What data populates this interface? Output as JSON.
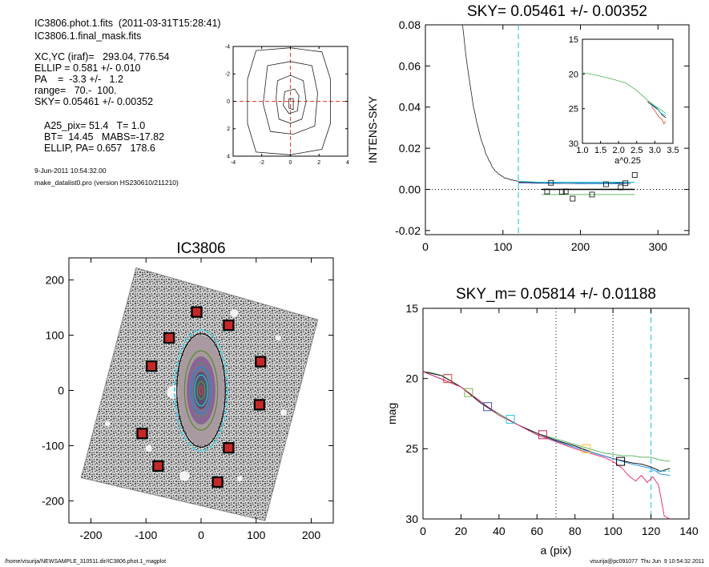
{
  "info": {
    "lines": [
      "IC3806.phot.1.fits  (2011-03-31T15:28:41)",
      "IC3806.1.final_mask.fits",
      "XC,YC (iraf)=   293.04, 776.54",
      "ELLIP = 0.581 +/- 0.010",
      "PA    =  -3.3 +/-   1.2",
      "range=   70.-  100.",
      "SKY= 0.05461 +/- 0.00352",
      "A25_pix= 51.4   T= 1.0",
      "BT=  14.45   MABS=-17.82",
      "ELLIP, PA= 0.657   178.6",
      "9-Jun-2011 10:54:32.00",
      "make_datalist0.pro (version HS230610/211210)"
    ]
  },
  "footer": {
    "left": "/home/visurija/NEWSAMPLE_310511.dir/IC3806.phot.1_magplot",
    "right": "visurija@pc091077  Thu Jun  9 10:54:32 2011"
  },
  "chart_data": [
    {
      "id": "contour",
      "type": "line",
      "title": "",
      "xlabel": "",
      "ylabel": "",
      "xlim": [
        -4,
        4
      ],
      "ylim": [
        -4,
        4
      ],
      "xticks": [
        "-4",
        "-2",
        "0",
        "2",
        "4"
      ],
      "yticks": [
        "-4",
        "-2",
        "0",
        "2",
        "4"
      ],
      "contours": [
        [
          [
            -2.4,
            3.7
          ],
          [
            0,
            3.9
          ],
          [
            2.2,
            3.6
          ],
          [
            2.8,
            1.6
          ],
          [
            2.8,
            -1.6
          ],
          [
            2.2,
            -3.5
          ],
          [
            0,
            -3.9
          ],
          [
            -2.4,
            -3.7
          ],
          [
            -3.0,
            -1.6
          ],
          [
            -3.0,
            1.6
          ]
        ],
        [
          [
            -1.6,
            2.6
          ],
          [
            0,
            2.9
          ],
          [
            1.5,
            2.6
          ],
          [
            1.9,
            0.6
          ],
          [
            1.7,
            -1.8
          ],
          [
            0.2,
            -2.4
          ],
          [
            -1.4,
            -2.2
          ],
          [
            -1.9,
            -0.2
          ]
        ],
        [
          [
            -0.9,
            1.5
          ],
          [
            0,
            1.9
          ],
          [
            0.9,
            1.5
          ],
          [
            1.1,
            0
          ],
          [
            0.8,
            -1.3
          ],
          [
            0,
            -1.6
          ],
          [
            -0.8,
            -1.3
          ],
          [
            -1.0,
            0.2
          ]
        ],
        [
          [
            -0.4,
            0.7
          ],
          [
            0.3,
            0.9
          ],
          [
            0.6,
            0.4
          ],
          [
            0.5,
            -0.7
          ],
          [
            -0.1,
            -0.9
          ],
          [
            -0.5,
            -0.3
          ]
        ],
        [
          [
            -0.1,
            0.2
          ],
          [
            0.2,
            0.2
          ],
          [
            0.2,
            -0.6
          ],
          [
            -0.1,
            -0.5
          ]
        ]
      ]
    },
    {
      "id": "sky",
      "type": "line",
      "title": "SKY= 0.05461 +/- 0.00352",
      "xlabel": "",
      "ylabel": "INTENS-SKY",
      "xlim": [
        0,
        340
      ],
      "ylim": [
        -0.022,
        0.08
      ],
      "xticks": [
        "0",
        "100",
        "200",
        "300"
      ],
      "yticks": [
        "0.08",
        "0.06",
        "0.04",
        "0.02",
        "0.00",
        "-0.02"
      ],
      "profile": [
        [
          48,
          0.08
        ],
        [
          50,
          0.073
        ],
        [
          52,
          0.066
        ],
        [
          54,
          0.06
        ],
        [
          56,
          0.055
        ],
        [
          58,
          0.05
        ],
        [
          60,
          0.045
        ],
        [
          62,
          0.04
        ],
        [
          64,
          0.037
        ],
        [
          66,
          0.033
        ],
        [
          68,
          0.03
        ],
        [
          70,
          0.027
        ],
        [
          72,
          0.024
        ],
        [
          74,
          0.022
        ],
        [
          76,
          0.02
        ],
        [
          78,
          0.017
        ],
        [
          80,
          0.016
        ],
        [
          82,
          0.014
        ],
        [
          84,
          0.013
        ],
        [
          86,
          0.011
        ],
        [
          88,
          0.01
        ],
        [
          90,
          0.009
        ],
        [
          92,
          0.0085
        ],
        [
          94,
          0.0075
        ],
        [
          96,
          0.0072
        ],
        [
          98,
          0.0066
        ],
        [
          100,
          0.0062
        ],
        [
          102,
          0.0055
        ],
        [
          104,
          0.0056
        ],
        [
          106,
          0.005
        ],
        [
          108,
          0.0052
        ],
        [
          110,
          0.0045
        ],
        [
          112,
          0.0048
        ],
        [
          114,
          0.0042
        ],
        [
          116,
          0.0044
        ],
        [
          118,
          0.004
        ],
        [
          120,
          0.004
        ]
      ],
      "tail_lines": [
        {
          "color": "#000000",
          "points": [
            [
              120,
              0.0035
            ],
            [
              160,
              0.003
            ],
            [
              200,
              0.0028
            ],
            [
              240,
              0.003
            ],
            [
              265,
              0.0035
            ]
          ]
        },
        {
          "color": "#00bcd4",
          "points": [
            [
              120,
              0.004
            ],
            [
              160,
              0.0032
            ],
            [
              200,
              0.0028
            ],
            [
              240,
              0.0027
            ],
            [
              265,
              0.0029
            ]
          ]
        },
        {
          "color": "#3f51b5",
          "points": [
            [
              120,
              0.0032
            ],
            [
              160,
              0.0029
            ],
            [
              200,
              0.003
            ],
            [
              240,
              0.003
            ],
            [
              265,
              0.0028
            ]
          ]
        }
      ],
      "sky_segments": [
        {
          "color": "#000000",
          "points": [
            [
              150,
              0.0
            ],
            [
              270,
              0.0
            ]
          ]
        },
        {
          "color": "#4caf50",
          "points": [
            [
              150,
              -0.0025
            ],
            [
              270,
              -0.0025
            ]
          ]
        },
        {
          "color": "#00bcd4",
          "points": [
            [
              150,
              0.0035
            ],
            [
              270,
              0.0035
            ]
          ]
        }
      ],
      "squares": [
        [
          157,
          -0.001
        ],
        [
          162,
          0.0032
        ],
        [
          176,
          -0.0012
        ],
        [
          181,
          -0.001
        ],
        [
          190,
          -0.0045
        ],
        [
          215,
          -0.0025
        ],
        [
          233,
          0.0025
        ],
        [
          252,
          0.001
        ],
        [
          258,
          0.003
        ],
        [
          270,
          0.007
        ]
      ],
      "vline": 120,
      "inset": {
        "xlabel": "a^0.25",
        "xlim": [
          1.0,
          3.5
        ],
        "ylim": [
          15,
          30
        ],
        "xticks": [
          "1.0",
          "1.5",
          "2.0",
          "2.5",
          "3.0",
          "3.5"
        ],
        "yticks": [
          "15",
          "20",
          "25",
          "30"
        ],
        "series": [
          {
            "color": "#4caf50",
            "points": [
              [
                1.0,
                19.8
              ],
              [
                1.4,
                20.2
              ],
              [
                1.8,
                20.7
              ],
              [
                2.2,
                21.3
              ],
              [
                2.5,
                22.4
              ],
              [
                2.8,
                23.8
              ],
              [
                3.0,
                24.6
              ],
              [
                3.2,
                25.3
              ],
              [
                3.3,
                25.7
              ]
            ]
          },
          {
            "color": "#000000",
            "points": [
              [
                2.8,
                24.0
              ],
              [
                3.0,
                24.8
              ],
              [
                3.1,
                25.2
              ],
              [
                3.2,
                25.9
              ],
              [
                3.3,
                26.3
              ]
            ]
          },
          {
            "color": "#e53935",
            "points": [
              [
                2.9,
                24.6
              ],
              [
                3.0,
                25.3
              ],
              [
                3.1,
                26.1
              ],
              [
                3.2,
                26.6
              ],
              [
                3.25,
                27.2
              ],
              [
                3.3,
                26.8
              ]
            ]
          },
          {
            "color": "#00bcd4",
            "points": [
              [
                2.9,
                24.3
              ],
              [
                3.05,
                24.9
              ],
              [
                3.15,
                25.6
              ],
              [
                3.3,
                26.0
              ]
            ]
          }
        ]
      }
    },
    {
      "id": "image",
      "type": "scatter",
      "title": "IC3806",
      "xlabel": "",
      "ylabel": "",
      "xlim": [
        -240,
        240
      ],
      "ylim": [
        -240,
        240
      ],
      "xticks": [
        "-200",
        "-100",
        "0",
        "100",
        "200"
      ],
      "yticks": [
        "200",
        "100",
        "0",
        "-100",
        "-200"
      ],
      "field_polygon": [
        [
          -118,
          222
        ],
        [
          212,
          128
        ],
        [
          116,
          -236
        ],
        [
          -218,
          -158
        ]
      ],
      "holes": [
        [
          -50,
          -3,
          12
        ],
        [
          60,
          140,
          7
        ],
        [
          -20,
          -60,
          6
        ],
        [
          -95,
          -105,
          6
        ],
        [
          -30,
          -155,
          9
        ],
        [
          150,
          -40,
          6
        ],
        [
          -170,
          -60,
          5
        ],
        [
          140,
          95,
          5
        ],
        [
          70,
          -160,
          5
        ]
      ],
      "markers": [
        [
          -8,
          142
        ],
        [
          -58,
          95
        ],
        [
          50,
          118
        ],
        [
          -90,
          44
        ],
        [
          108,
          52
        ],
        [
          -107,
          -78
        ],
        [
          106,
          -26
        ],
        [
          -78,
          -137
        ],
        [
          50,
          -104
        ],
        [
          30,
          -166
        ]
      ],
      "ellipses": [
        {
          "rx": 48,
          "ry": 110,
          "color": "#4dd0e1",
          "dashed": true
        },
        {
          "rx": 44,
          "ry": 103,
          "color": "#000000",
          "dashed": false
        },
        {
          "rx": 30,
          "ry": 72,
          "color": "#558b2f",
          "dashed": false
        },
        {
          "rx": 24,
          "ry": 56,
          "color": "#ab47bc",
          "dashed": false
        },
        {
          "rx": 18,
          "ry": 42,
          "color": "#1e88e5",
          "dashed": false
        },
        {
          "rx": 12,
          "ry": 28,
          "color": "#26c6da",
          "dashed": false
        },
        {
          "rx": 7,
          "ry": 16,
          "color": "#43a047",
          "dashed": false
        },
        {
          "rx": 3,
          "ry": 7,
          "color": "#e53935",
          "dashed": false
        }
      ]
    },
    {
      "id": "mag",
      "type": "line",
      "title": "SKY_m=  0.05814 +/- 0.01188",
      "xlabel": "a (pix)",
      "ylabel": "mag",
      "xlim": [
        0,
        140
      ],
      "ylim": [
        15,
        30
      ],
      "xticks": [
        "0",
        "20",
        "40",
        "60",
        "80",
        "100",
        "120",
        "140"
      ],
      "yticks": [
        "15",
        "20",
        "25",
        "30"
      ],
      "series": [
        {
          "color": "#4caf50",
          "points": [
            [
              0,
              19.5
            ],
            [
              5,
              19.6
            ],
            [
              10,
              19.8
            ],
            [
              15,
              20.2
            ],
            [
              20,
              20.6
            ],
            [
              25,
              21.1
            ],
            [
              30,
              21.6
            ],
            [
              35,
              22.1
            ],
            [
              40,
              22.5
            ],
            [
              45,
              22.9
            ],
            [
              50,
              23.3
            ],
            [
              55,
              23.6
            ],
            [
              60,
              23.9
            ],
            [
              65,
              24.1
            ],
            [
              70,
              24.3
            ],
            [
              75,
              24.5
            ],
            [
              80,
              24.7
            ],
            [
              85,
              24.9
            ],
            [
              90,
              25.1
            ],
            [
              95,
              25.3
            ],
            [
              100,
              25.4
            ],
            [
              105,
              25.5
            ],
            [
              110,
              25.5
            ],
            [
              115,
              25.6
            ],
            [
              120,
              25.6
            ],
            [
              125,
              25.8
            ],
            [
              130,
              25.9
            ]
          ]
        },
        {
          "color": "#000000",
          "points": [
            [
              0,
              19.5
            ],
            [
              10,
              19.8
            ],
            [
              20,
              20.6
            ],
            [
              30,
              21.7
            ],
            [
              40,
              22.6
            ],
            [
              50,
              23.3
            ],
            [
              60,
              23.9
            ],
            [
              70,
              24.4
            ],
            [
              80,
              24.8
            ],
            [
              90,
              25.3
            ],
            [
              100,
              25.7
            ],
            [
              110,
              26.0
            ],
            [
              115,
              26.1
            ],
            [
              120,
              26.3
            ],
            [
              125,
              26.6
            ],
            [
              130,
              26.4
            ]
          ]
        },
        {
          "color": "#1e88e5",
          "points": [
            [
              0,
              19.5
            ],
            [
              20,
              20.6
            ],
            [
              40,
              22.6
            ],
            [
              60,
              24.0
            ],
            [
              80,
              24.9
            ],
            [
              100,
              25.7
            ],
            [
              110,
              26.1
            ],
            [
              120,
              26.4
            ],
            [
              125,
              26.8
            ],
            [
              130,
              26.9
            ]
          ]
        },
        {
          "color": "#e91e63",
          "points": [
            [
              0,
              19.5
            ],
            [
              20,
              20.6
            ],
            [
              40,
              22.6
            ],
            [
              60,
              24.0
            ],
            [
              80,
              25.0
            ],
            [
              95,
              25.6
            ],
            [
              100,
              25.9
            ],
            [
              105,
              26.4
            ],
            [
              108,
              26.9
            ],
            [
              112,
              27.3
            ],
            [
              115,
              26.9
            ],
            [
              118,
              27.4
            ],
            [
              121,
              27.0
            ],
            [
              124,
              27.6
            ],
            [
              127,
              29.8
            ],
            [
              130,
              30.0
            ]
          ]
        }
      ],
      "squares": [
        {
          "x": 13,
          "y": 20.0,
          "color": "#e53935"
        },
        {
          "x": 24,
          "y": 21.0,
          "color": "#7cb342"
        },
        {
          "x": 34,
          "y": 22.0,
          "color": "#3f51b5"
        },
        {
          "x": 46,
          "y": 22.9,
          "color": "#26c6da"
        },
        {
          "x": 63,
          "y": 24.0,
          "color": "#d81b60"
        },
        {
          "x": 86,
          "y": 25.0,
          "color": "#fbc02d"
        },
        {
          "x": 104,
          "y": 25.9,
          "color": "#000000"
        }
      ],
      "vlines_dotted": [
        70,
        100
      ],
      "vline_dashed": 120,
      "hline_dashed": {
        "x": [
          119,
          130
        ],
        "y": 26.6
      }
    }
  ]
}
